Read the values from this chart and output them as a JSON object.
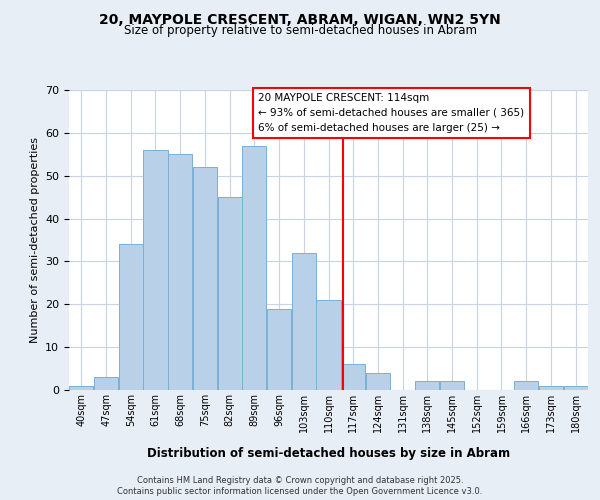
{
  "title": "20, MAYPOLE CRESCENT, ABRAM, WIGAN, WN2 5YN",
  "subtitle": "Size of property relative to semi-detached houses in Abram",
  "xlabel": "Distribution of semi-detached houses by size in Abram",
  "ylabel": "Number of semi-detached properties",
  "bar_labels": [
    "40sqm",
    "47sqm",
    "54sqm",
    "61sqm",
    "68sqm",
    "75sqm",
    "82sqm",
    "89sqm",
    "96sqm",
    "103sqm",
    "110sqm",
    "117sqm",
    "124sqm",
    "131sqm",
    "138sqm",
    "145sqm",
    "152sqm",
    "159sqm",
    "166sqm",
    "173sqm",
    "180sqm"
  ],
  "bar_values": [
    1,
    3,
    34,
    56,
    55,
    52,
    45,
    57,
    19,
    32,
    21,
    6,
    4,
    0,
    2,
    2,
    0,
    0,
    2,
    1,
    1
  ],
  "bin_edges": [
    36.5,
    43.5,
    50.5,
    57.5,
    64.5,
    71.5,
    78.5,
    85.5,
    92.5,
    99.5,
    106.5,
    113.5,
    120.5,
    127.5,
    134.5,
    141.5,
    148.5,
    155.5,
    162.5,
    169.5,
    176.5,
    183.5
  ],
  "bar_color": "#b8d0e8",
  "bar_edgecolor": "#7aafd4",
  "ylim": [
    0,
    70
  ],
  "yticks": [
    0,
    10,
    20,
    30,
    40,
    50,
    60,
    70
  ],
  "red_line_x": 114,
  "annotation_title": "20 MAYPOLE CRESCENT: 114sqm",
  "annotation_line1": "← 93% of semi-detached houses are smaller ( 365)",
  "annotation_line2": "6% of semi-detached houses are larger (25) →",
  "footer1": "Contains HM Land Registry data © Crown copyright and database right 2025.",
  "footer2": "Contains public sector information licensed under the Open Government Licence v3.0.",
  "bg_color": "#e8eef6",
  "plot_bg_color": "#ffffff",
  "grid_color": "#c8d4e4"
}
